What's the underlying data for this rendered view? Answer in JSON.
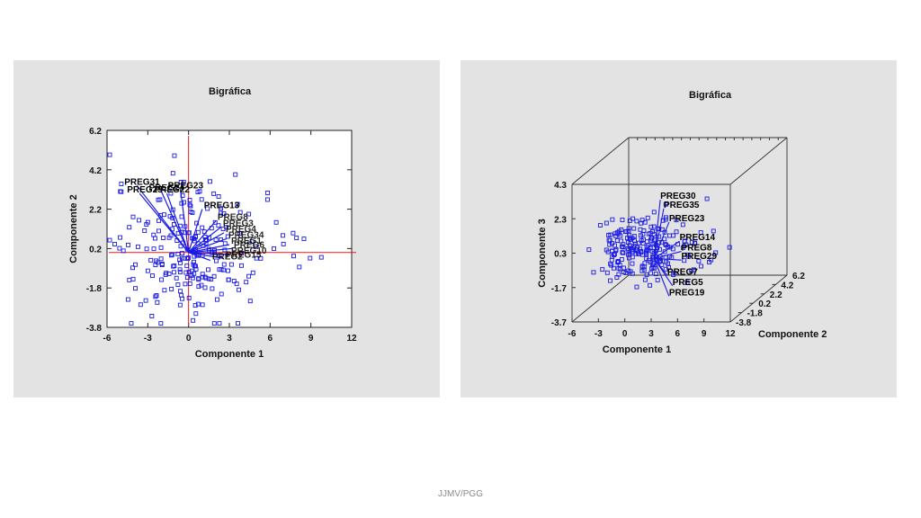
{
  "footer": "JJMV/PGG",
  "chart_data": [
    {
      "type": "scatter",
      "title": "Bigráfica",
      "xlabel": "Componente 1",
      "ylabel": "Componente 2",
      "xlim": [
        -6,
        12
      ],
      "ylim": [
        -3.8,
        6.2
      ],
      "xticks": [
        -6,
        -3,
        0,
        3,
        6,
        9,
        12
      ],
      "yticks": [
        -3.8,
        -1.8,
        0.2,
        2.2,
        4.2,
        6.2
      ],
      "ytick_labels": [
        "-3.8",
        "-1.8",
        "0.2",
        "2.2",
        "4.2",
        "6.2"
      ],
      "reference_lines": {
        "x": 0,
        "y": 0.0,
        "color": "#e01b1b"
      },
      "point_color": "#1a1ae6",
      "vector_color": "#1a1ae6",
      "point_seed": 7,
      "points": [],
      "vectors": [
        {
          "label": "PREG31",
          "x": -3.8,
          "y": 3.4
        },
        {
          "label": "PREG25",
          "x": -3.6,
          "y": 3.0
        },
        {
          "label": "PREG24",
          "x": -2.0,
          "y": 3.1
        },
        {
          "label": "PREG22",
          "x": -1.6,
          "y": 3.0
        },
        {
          "label": "PREG23",
          "x": -0.6,
          "y": 3.2
        },
        {
          "label": "PREG13",
          "x": 1.0,
          "y": 2.2
        },
        {
          "label": "PREG8",
          "x": 2.0,
          "y": 1.6
        },
        {
          "label": "PREG3",
          "x": 2.4,
          "y": 1.3
        },
        {
          "label": "PREG4",
          "x": 2.6,
          "y": 1.0
        },
        {
          "label": "PREG34",
          "x": 2.8,
          "y": 0.7
        },
        {
          "label": "PREG1",
          "x": 3.0,
          "y": 0.4
        },
        {
          "label": "PREG6",
          "x": 3.2,
          "y": 0.2
        },
        {
          "label": "PREG10",
          "x": 3.0,
          "y": -0.1
        },
        {
          "label": "PREG15",
          "x": 2.6,
          "y": -0.3
        },
        {
          "label": "PREG2",
          "x": 1.6,
          "y": -0.4
        }
      ],
      "visible_labels": [
        "PREG31",
        "PREG25",
        "PREG23",
        "PREG22",
        "PREG13"
      ]
    },
    {
      "type": "scatter",
      "title": "Bigráfica",
      "xlabel": "Componente 1",
      "ylabel": "Componente 3",
      "zlabel": "Componente 2",
      "xlim": [
        -6,
        12
      ],
      "ylim": [
        -3.8,
        6.2
      ],
      "zlim": [
        -3.7,
        4.3
      ],
      "xticks": [
        -6,
        -3,
        0,
        3,
        6,
        9,
        12
      ],
      "yticks": [
        -3.8,
        -1.8,
        0.2,
        2.2,
        4.2,
        6.2
      ],
      "zticks": [
        -3.7,
        -1.7,
        0.3,
        2.3,
        4.3
      ],
      "point_color": "#1a1ae6",
      "vector_color": "#1a1ae6",
      "point_seed": 13,
      "vectors": [
        {
          "label": "PREG30",
          "x": 2.6,
          "z": 3.4
        },
        {
          "label": "PREG35",
          "x": 3.0,
          "z": 2.9
        },
        {
          "label": "PREG23",
          "x": 3.6,
          "z": 2.1
        },
        {
          "label": "PREG14",
          "x": 4.8,
          "z": 1.0
        },
        {
          "label": "PREG8",
          "x": 5.0,
          "z": 0.4
        },
        {
          "label": "PREG29",
          "x": 5.0,
          "z": -0.1
        },
        {
          "label": "PREG7",
          "x": 3.4,
          "z": -1.0
        },
        {
          "label": "PREG5",
          "x": 4.0,
          "z": -1.6
        },
        {
          "label": "PREG19",
          "x": 3.6,
          "z": -2.2
        }
      ],
      "visible_labels": [
        "PREG30",
        "PREG35",
        "PREG23",
        "PREG14",
        "PREG7",
        "PREG5",
        "PREG19"
      ]
    }
  ]
}
